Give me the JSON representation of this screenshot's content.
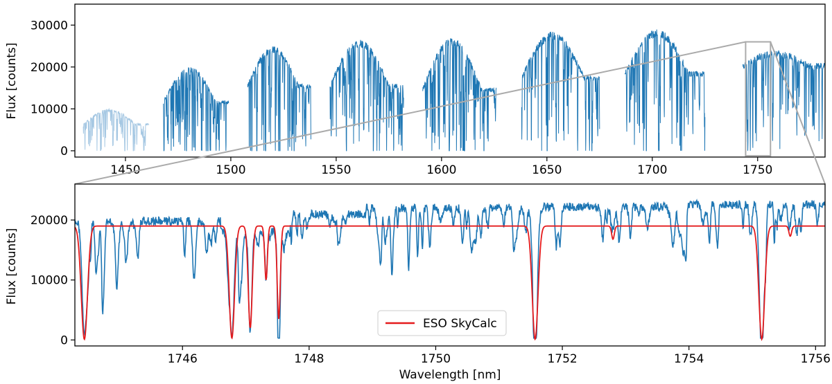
{
  "chart_data": [
    {
      "type": "line",
      "panel": "overview",
      "xlabel": "Wavelength [nm]",
      "ylabel": "Flux [counts]",
      "xlim": [
        1426,
        1782
      ],
      "ylim": [
        -1500,
        35000
      ],
      "xticks": [
        1450,
        1500,
        1550,
        1600,
        1650,
        1700,
        1750
      ],
      "yticks": [
        0,
        10000,
        20000,
        30000
      ],
      "color_main": "#1f77b4",
      "color_faint": "#a6c8e3",
      "segments": [
        {
          "x0": 1430,
          "x1": 1461,
          "peak": 10000,
          "edge": 6500,
          "lines": 60,
          "faint": true
        },
        {
          "x0": 1468,
          "x1": 1499,
          "peak": 20000,
          "edge": 12000,
          "lines": 80,
          "faint": false
        },
        {
          "x0": 1508,
          "x1": 1538,
          "peak": 25000,
          "edge": 16000,
          "lines": 60,
          "faint": false
        },
        {
          "x0": 1547,
          "x1": 1582,
          "peak": 26500,
          "edge": 16000,
          "lines": 70,
          "faint": false
        },
        {
          "x0": 1591,
          "x1": 1626,
          "peak": 27000,
          "edge": 15000,
          "lines": 70,
          "faint": false
        },
        {
          "x0": 1638,
          "x1": 1675,
          "peak": 28500,
          "edge": 18000,
          "lines": 55,
          "faint": false
        },
        {
          "x0": 1687,
          "x1": 1725,
          "peak": 29000,
          "edge": 19000,
          "lines": 60,
          "faint": false
        },
        {
          "x0": 1743,
          "x1": 1782,
          "peak": 24000,
          "edge": 21000,
          "lines": 50,
          "faint": false
        }
      ],
      "zoom_box": {
        "x0": 1744.3,
        "x1": 1756.1,
        "y0": -1200,
        "y1": 26000
      }
    },
    {
      "type": "line",
      "panel": "zoom",
      "xlabel": "Wavelength [nm]",
      "ylabel": "Flux [counts]",
      "xlim": [
        1744.3,
        1756.15
      ],
      "ylim": [
        -1000,
        26000
      ],
      "xticks": [
        1746,
        1748,
        1750,
        1752,
        1754,
        1756
      ],
      "yticks": [
        0,
        10000,
        20000
      ],
      "legend_position": "lower-center",
      "series": [
        {
          "name": "",
          "color": "#1f77b4",
          "continuum_segments": [
            {
              "x0": 1744.3,
              "x1": 1746.6,
              "level": 19800
            },
            {
              "x0": 1746.6,
              "x1": 1747.7,
              "level": 18000
            },
            {
              "x0": 1747.7,
              "x1": 1748.9,
              "level": 21000
            },
            {
              "x0": 1748.9,
              "x1": 1751.6,
              "level": 22000
            },
            {
              "x0": 1751.6,
              "x1": 1753.6,
              "level": 22200
            },
            {
              "x0": 1753.6,
              "x1": 1756.15,
              "level": 22600
            }
          ],
          "deep_lines": [
            {
              "x": 1744.45,
              "depth": 19000,
              "width": 0.05
            },
            {
              "x": 1746.78,
              "depth": 17700,
              "width": 0.045
            },
            {
              "x": 1747.07,
              "depth": 16900,
              "width": 0.035
            },
            {
              "x": 1747.32,
              "depth": 8000,
              "width": 0.025
            },
            {
              "x": 1747.52,
              "depth": 14500,
              "width": 0.03
            },
            {
              "x": 1751.57,
              "depth": 21500,
              "width": 0.05
            },
            {
              "x": 1755.15,
              "depth": 21900,
              "width": 0.05
            }
          ]
        },
        {
          "name": "ESO SkyCalc",
          "color": "#e41a1c",
          "continuum": 19000,
          "lines": [
            {
              "x": 1744.45,
              "depth": 18900,
              "width": 0.07
            },
            {
              "x": 1746.78,
              "depth": 18700,
              "width": 0.06
            },
            {
              "x": 1747.07,
              "depth": 17000,
              "width": 0.045
            },
            {
              "x": 1747.32,
              "depth": 9000,
              "width": 0.03
            },
            {
              "x": 1747.52,
              "depth": 15500,
              "width": 0.035
            },
            {
              "x": 1751.57,
              "depth": 18900,
              "width": 0.065
            },
            {
              "x": 1752.8,
              "depth": 2200,
              "width": 0.03
            },
            {
              "x": 1755.15,
              "depth": 18900,
              "width": 0.065
            },
            {
              "x": 1755.6,
              "depth": 1700,
              "width": 0.03
            }
          ]
        }
      ]
    }
  ]
}
